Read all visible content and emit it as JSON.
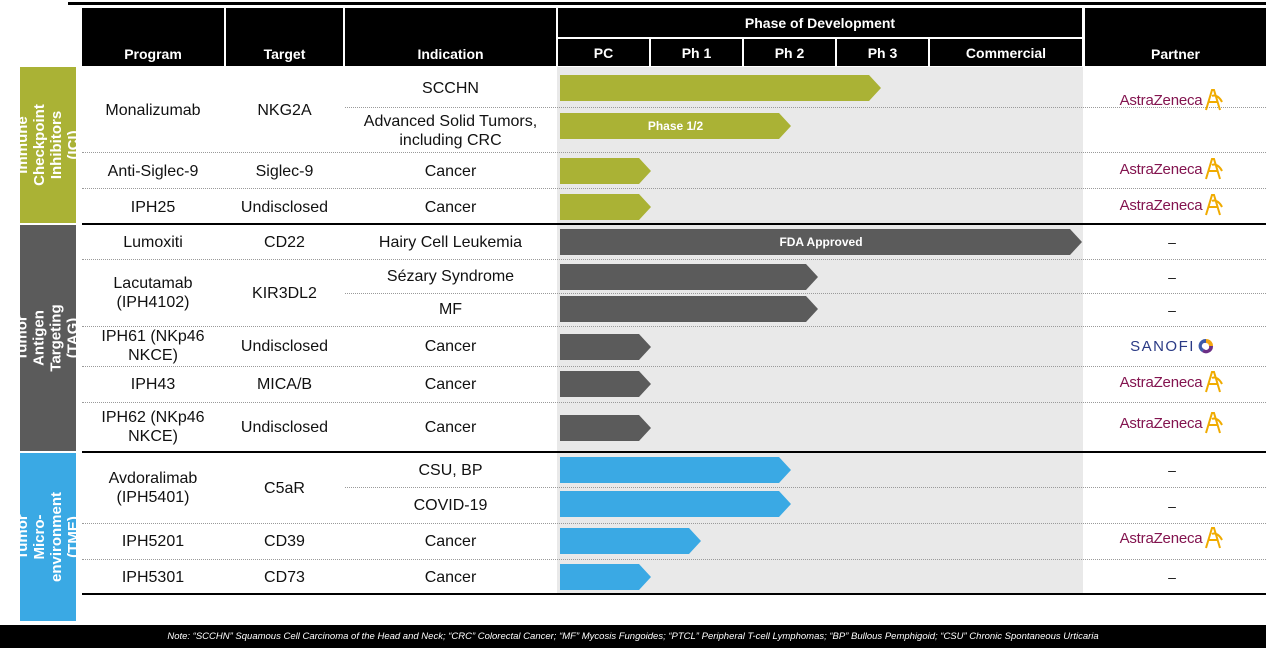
{
  "header": {
    "program": "Program",
    "target": "Target",
    "indication": "Indication",
    "phase_title": "Phase of Development",
    "phases": [
      "PC",
      "Ph 1",
      "Ph 2",
      "Ph 3",
      "Commercial"
    ],
    "partner": "Partner"
  },
  "groups": [
    {
      "label": "Immune Checkpoint Inhibitors (ICI)",
      "color": "#aab235"
    },
    {
      "label": "Tumor Antigen Targeting (TAG)",
      "color": "#5b5b5b"
    },
    {
      "label": "Tumor Micro-environment (TME)",
      "color": "#3aa9e4"
    }
  ],
  "programs": [
    {
      "program": "Monalizumab",
      "target": "NKG2A"
    },
    {
      "program": "Anti-Siglec-9",
      "target": "Siglec-9"
    },
    {
      "program": "IPH25",
      "target": "Undisclosed"
    },
    {
      "program": "Lumoxiti",
      "target": "CD22"
    },
    {
      "program": "Lacutamab (IPH4102)",
      "target": "KIR3DL2"
    },
    {
      "program": "IPH61 (NKp46 NKCE)",
      "target": "Undisclosed"
    },
    {
      "program": "IPH43",
      "target": "MICA/B"
    },
    {
      "program": "IPH62 (NKp46 NKCE)",
      "target": "Undisclosed"
    },
    {
      "program": "Avdoralimab (IPH5401)",
      "target": "C5aR"
    },
    {
      "program": "IPH5201",
      "target": "CD39"
    },
    {
      "program": "IPH5301",
      "target": "CD73"
    }
  ],
  "indications": [
    {
      "text": "SCCHN",
      "phase_reached": "Ph 3",
      "bar_label": "",
      "partner": "AstraZeneca"
    },
    {
      "text": "Advanced Solid Tumors, including CRC",
      "phase_reached": "Ph 2",
      "bar_label": "Phase 1/2",
      "partner": ""
    },
    {
      "text": "Cancer",
      "phase_reached": "PC",
      "bar_label": "",
      "partner": "AstraZeneca"
    },
    {
      "text": "Cancer",
      "phase_reached": "PC",
      "bar_label": "",
      "partner": "AstraZeneca"
    },
    {
      "text": "Hairy Cell Leukemia",
      "phase_reached": "Commercial",
      "bar_label": "FDA Approved",
      "partner": "–"
    },
    {
      "text": "Sézary Syndrome",
      "phase_reached": "Ph 2",
      "bar_label": "",
      "partner": "–"
    },
    {
      "text": "MF",
      "phase_reached": "Ph 2",
      "bar_label": "",
      "partner": "–"
    },
    {
      "text": "Cancer",
      "phase_reached": "PC",
      "bar_label": "",
      "partner": "SANOFI"
    },
    {
      "text": "Cancer",
      "phase_reached": "PC",
      "bar_label": "",
      "partner": "AstraZeneca"
    },
    {
      "text": "Cancer",
      "phase_reached": "PC",
      "bar_label": "",
      "partner": "AstraZeneca"
    },
    {
      "text": "CSU, BP",
      "phase_reached": "Ph 2",
      "bar_label": "",
      "partner": "–"
    },
    {
      "text": "COVID-19",
      "phase_reached": "Ph 2",
      "bar_label": "",
      "partner": "–"
    },
    {
      "text": "Cancer",
      "phase_reached": "Ph 1",
      "bar_label": "",
      "partner": "AstraZeneca"
    },
    {
      "text": "Cancer",
      "phase_reached": "PC",
      "bar_label": "",
      "partner": "–"
    }
  ],
  "partners": {
    "astrazeneca": "AstraZeneca",
    "sanofi": "SANOFI",
    "dash": "–"
  },
  "icons": {
    "astrazeneca": "astrazeneca-logo-icon",
    "sanofi": "sanofi-logo-icon"
  },
  "note": "Note: “SCCHN” Squamous Cell Carcinoma of the Head and Neck; “CRC” Colorectal Cancer; “MF” Mycosis Fungoides; “PTCL” Peripheral T-cell Lymphomas; “BP” Bullous Pemphigoid; “CSU” Chronic Spontaneous Urticaria"
}
